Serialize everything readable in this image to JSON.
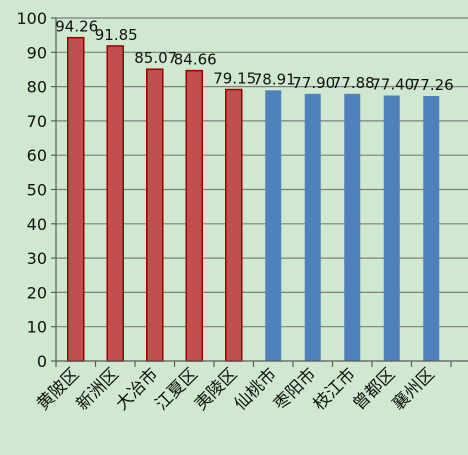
{
  "chart_data": {
    "type": "bar",
    "categories": [
      "黄陂区",
      "新洲区",
      "大冶市",
      "江夏区",
      "夷陵区",
      "仙桃市",
      "枣阳市",
      "枝江市",
      "曾都区",
      "襄州区"
    ],
    "values": [
      94.26,
      91.85,
      85.07,
      84.66,
      79.15,
      78.91,
      77.9,
      77.88,
      77.4,
      77.26
    ],
    "value_labels": [
      "94.26",
      "91.85",
      "85.07",
      "84.66",
      "79.15",
      "78.91",
      "77.90",
      "77.88",
      "77.40",
      "77.26"
    ],
    "ylim": [
      0,
      100
    ],
    "yticks": [
      0,
      10,
      20,
      30,
      40,
      50,
      60,
      70,
      80,
      90,
      100
    ],
    "ytick_labels": [
      "0",
      "10",
      "20",
      "30",
      "40",
      "50",
      "60",
      "70",
      "80",
      "90",
      "100"
    ],
    "grid": true,
    "colors": {
      "highlight_fill": "#c0504d",
      "highlight_stroke": "#9b0000",
      "normal_fill": "#4f81bd",
      "grid": "#7f7f7f",
      "axis": "#595959",
      "background": "#cfe8cf"
    },
    "highlight_count": 5
  }
}
